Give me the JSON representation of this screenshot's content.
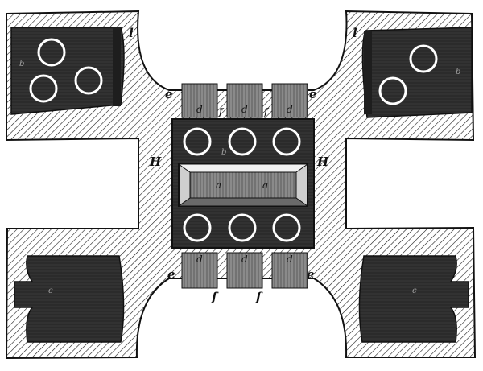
{
  "figure": {
    "colors": {
      "ink": "#111111",
      "hatch_line": "#1a1a1a",
      "paper": "#ffffff",
      "dark_fill": "#2b2b2b",
      "mid_fill": "#3a3a3a",
      "light_fill": "#8a8a8a"
    }
  },
  "labels": {
    "l_left": "l",
    "l_right": "l",
    "H_left": "H",
    "H_right": "H",
    "e_top_left": "e",
    "e_top_right": "e",
    "e_bottom_left": "e",
    "e_bottom_right": "e",
    "d_top_1": "d",
    "d_top_2": "d",
    "d_top_3": "d",
    "d_bottom_1": "d",
    "d_bottom_2": "d",
    "d_bottom_3": "d",
    "f_top_1": "f",
    "f_top_2": "f",
    "f_bottom_1": "f",
    "f_bottom_2": "f",
    "b_left": "b",
    "b_right": "b",
    "b_center": "b",
    "c_left": "c",
    "c_right": "c",
    "a_1": "a",
    "a_2": "a"
  }
}
